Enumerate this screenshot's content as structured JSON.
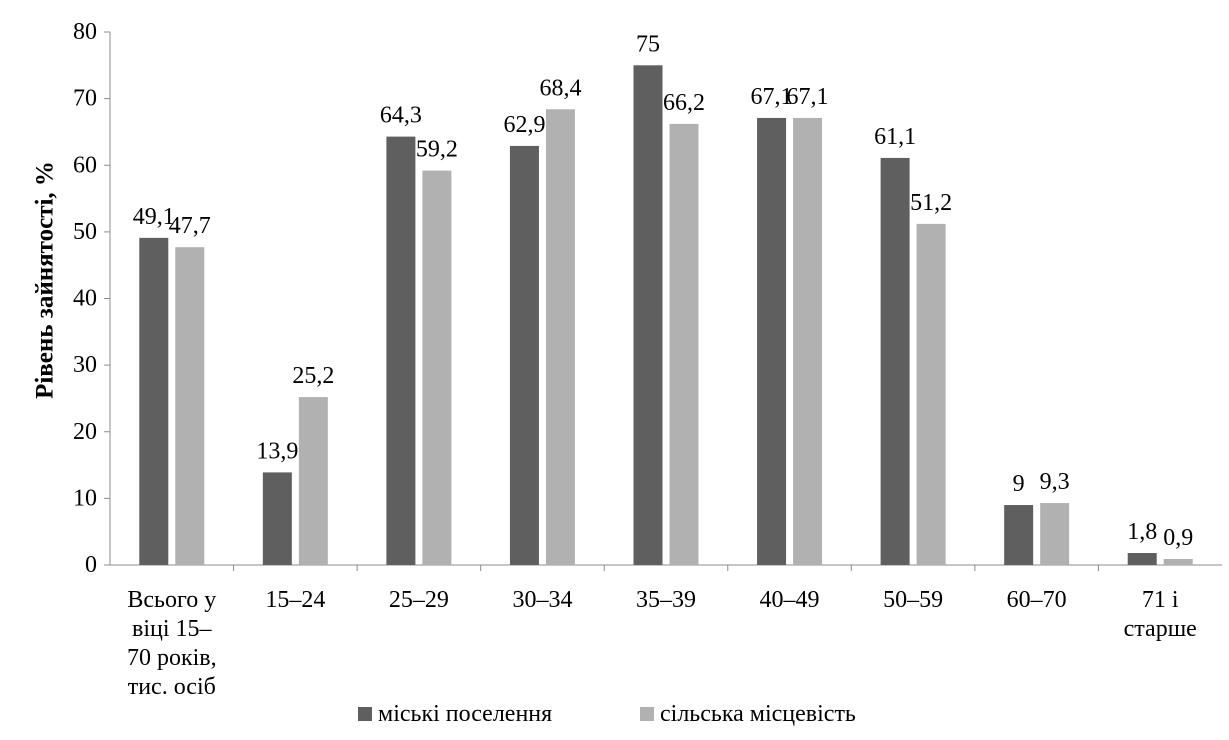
{
  "chart_data": {
    "type": "bar",
    "title": "",
    "xlabel": "",
    "ylabel": "Рівень зайнятості, %",
    "ylim": [
      0,
      80
    ],
    "yticks": [
      0,
      10,
      20,
      30,
      40,
      50,
      60,
      70,
      80
    ],
    "grid": false,
    "legend_position": "bottom",
    "categories": [
      [
        "Всього у",
        "віці  15–",
        "70 років,",
        "тис. осіб"
      ],
      [
        "15–24"
      ],
      [
        "25–29"
      ],
      [
        "30–34"
      ],
      [
        "35–39"
      ],
      [
        "40–49"
      ],
      [
        "50–59"
      ],
      [
        "60–70"
      ],
      [
        "71 і",
        "старше"
      ]
    ],
    "series": [
      {
        "name": "міські поселення",
        "color": "#5f5f5f",
        "values": [
          49.1,
          13.9,
          64.3,
          62.9,
          75,
          67.1,
          61.1,
          9,
          1.8
        ],
        "labels": [
          "49,1",
          "13,9",
          "64,3",
          "62,9",
          "75",
          "67,1",
          "61,1",
          "9",
          "1,8"
        ]
      },
      {
        "name": "сільська місцевість",
        "color": "#b1b1b1",
        "values": [
          47.7,
          25.2,
          59.2,
          68.4,
          66.2,
          67.1,
          51.2,
          9.3,
          0.9
        ],
        "labels": [
          "47,7",
          "25,2",
          "59,2",
          "68,4",
          "66,2",
          "67,1",
          "51,2",
          "9,3",
          "0,9"
        ]
      }
    ]
  }
}
